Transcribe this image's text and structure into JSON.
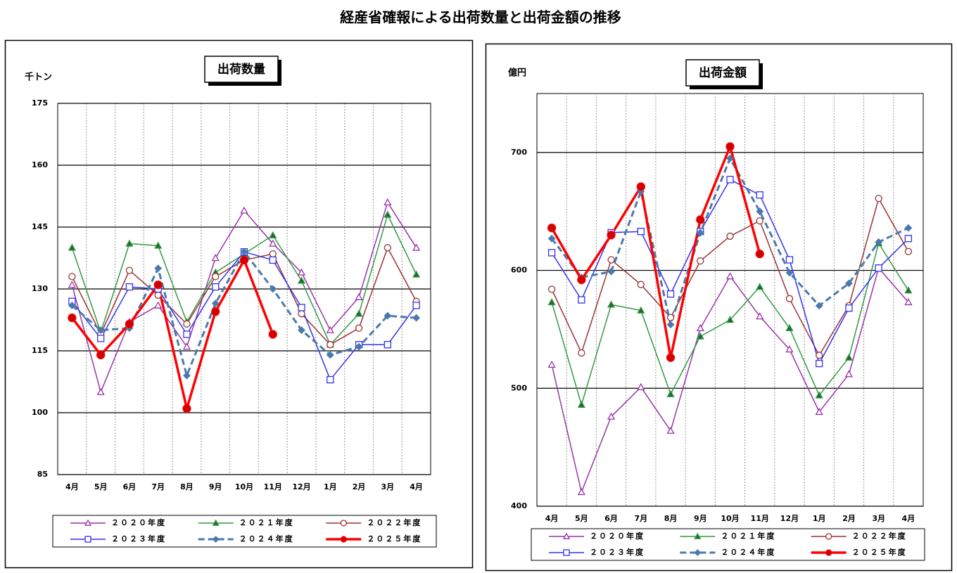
{
  "title": "経産省確報による出荷数量と出荷金額の推移",
  "chart_data": [
    {
      "type": "line",
      "title": "出荷数量",
      "y_label": "千トン",
      "categories": [
        "4月",
        "5月",
        "6月",
        "7月",
        "8月",
        "9月",
        "10月",
        "11月",
        "12月",
        "1月",
        "2月",
        "3月",
        "4月"
      ],
      "ylim": [
        85,
        175
      ],
      "yticks": [
        85,
        100,
        115,
        130,
        145,
        160,
        175
      ],
      "grid": true,
      "series": [
        {
          "name": "２０２０年度",
          "color": "#9933aa",
          "marker": "triangle",
          "filled": false,
          "dash": false,
          "values": [
            131,
            105,
            122,
            126,
            116,
            137.5,
            149,
            141,
            134,
            120,
            128,
            151,
            140
          ]
        },
        {
          "name": "２０２１年度",
          "color": "#339944",
          "marker": "triangle",
          "filled": true,
          "dash": false,
          "values": [
            140,
            119.5,
            141,
            140.5,
            122,
            134,
            138.5,
            143,
            132,
            116.5,
            124,
            148,
            133.5
          ]
        },
        {
          "name": "２０２２年度",
          "color": "#993333",
          "marker": "circle",
          "filled": false,
          "dash": false,
          "values": [
            133,
            119,
            134.5,
            128.5,
            121.5,
            133,
            137,
            138.5,
            124,
            116.5,
            120.5,
            140,
            127
          ]
        },
        {
          "name": "２０２３年度",
          "color": "#3333ee",
          "marker": "square",
          "filled": false,
          "dash": false,
          "values": [
            127,
            118,
            130.5,
            130,
            119,
            130.5,
            139,
            137,
            125.5,
            108,
            116.5,
            116.5,
            126
          ]
        },
        {
          "name": "２０２４年度",
          "color": "#4a7aac",
          "marker": "diamond",
          "filled": true,
          "dash": true,
          "values": [
            126,
            120,
            120.5,
            135,
            109,
            126.5,
            139,
            130,
            120,
            114,
            116,
            123.5,
            123
          ]
        },
        {
          "name": "２０２５年度",
          "color": "#ff0000",
          "marker": "circle",
          "filled": true,
          "dash": false,
          "values": [
            123,
            114,
            121.5,
            131,
            101,
            124.5,
            137,
            119,
            null,
            null,
            null,
            null,
            null
          ]
        }
      ]
    },
    {
      "type": "line",
      "title": "出荷金額",
      "y_label": "億円",
      "categories": [
        "4月",
        "5月",
        "6月",
        "7月",
        "8月",
        "9月",
        "10月",
        "11月",
        "12月",
        "1月",
        "2月",
        "3月",
        "4月"
      ],
      "ylim": [
        400,
        750
      ],
      "yticks": [
        400,
        500,
        600,
        700
      ],
      "grid": true,
      "series": [
        {
          "name": "２０２０年度",
          "color": "#9933aa",
          "marker": "triangle",
          "filled": false,
          "dash": false,
          "values": [
            520,
            412,
            476,
            501,
            464,
            551,
            595,
            561,
            533,
            480,
            512,
            602,
            573
          ]
        },
        {
          "name": "２０２１年度",
          "color": "#339944",
          "marker": "triangle",
          "filled": true,
          "dash": false,
          "values": [
            573,
            486,
            571,
            566,
            495,
            544,
            558,
            586,
            551,
            494,
            526,
            623,
            583
          ]
        },
        {
          "name": "２０２２年度",
          "color": "#993333",
          "marker": "circle",
          "filled": false,
          "dash": false,
          "values": [
            584,
            530,
            609,
            588,
            560,
            608,
            629,
            642,
            576,
            528,
            570,
            661,
            616
          ]
        },
        {
          "name": "２０２３年度",
          "color": "#3333ee",
          "marker": "square",
          "filled": false,
          "dash": false,
          "values": [
            615,
            575,
            632,
            633,
            580,
            633,
            677,
            664,
            609,
            521,
            568,
            602,
            627
          ]
        },
        {
          "name": "２０２４年度",
          "color": "#4a7aac",
          "marker": "diamond",
          "filled": true,
          "dash": true,
          "values": [
            627,
            594,
            599,
            667,
            554,
            632,
            695,
            650,
            598,
            570,
            589,
            624,
            636
          ]
        },
        {
          "name": "２０２５年度",
          "color": "#ff0000",
          "marker": "circle",
          "filled": true,
          "dash": false,
          "values": [
            636,
            592,
            630,
            671,
            526,
            643,
            705,
            614,
            null,
            null,
            null,
            null,
            null
          ]
        }
      ]
    }
  ]
}
